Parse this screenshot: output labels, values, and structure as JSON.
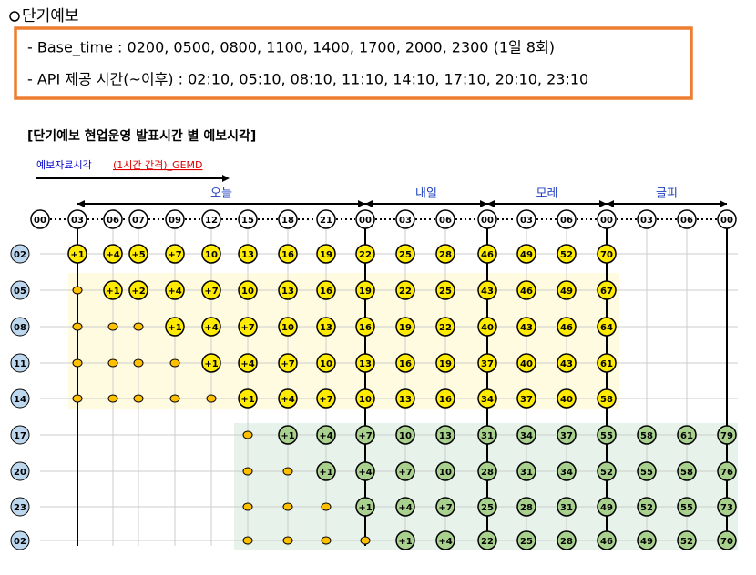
{
  "header": {
    "title": "단기예보"
  },
  "box": {
    "lines": [
      "- Base_time : 0200, 0500, 0800, 1100, 1400, 1700, 2000, 2300 (1일 8회)",
      "- API 제공 시간(~이후) : 02:10, 05:10, 08:10, 11:10, 14:10, 17:10, 20:10, 23:10"
    ]
  },
  "section": {
    "title": "[단기예보 현업운영 발표시간 별 예보시각]"
  },
  "legend": {
    "label": "예보자료시각",
    "note": "(1시간 간격)_GEMD"
  },
  "days": [
    "오늘",
    "내일",
    "모레",
    "글피"
  ],
  "columns": [
    "00",
    "03",
    "06",
    "07",
    "09",
    "12",
    "15",
    "18",
    "21",
    "00",
    "03",
    "06",
    "00",
    "03",
    "06",
    "00",
    "03",
    "06",
    "00"
  ],
  "rows": [
    {
      "label": "02",
      "cells": [
        null,
        "+1",
        "+4",
        "+5",
        "+7",
        "10",
        "13",
        "16",
        "19",
        "22",
        "25",
        "28",
        "46",
        "49",
        "52",
        "70",
        null,
        null,
        null
      ]
    },
    {
      "label": "05",
      "cells": [
        null,
        null,
        "+1",
        "+2",
        "+4",
        "+7",
        "10",
        "13",
        "16",
        "19",
        "22",
        "25",
        "43",
        "46",
        "49",
        "67",
        null,
        null,
        null
      ]
    },
    {
      "label": "08",
      "cells": [
        null,
        null,
        null,
        null,
        "+1",
        "+4",
        "+7",
        "10",
        "13",
        "16",
        "19",
        "22",
        "40",
        "43",
        "46",
        "64",
        null,
        null,
        null
      ]
    },
    {
      "label": "11",
      "cells": [
        null,
        null,
        null,
        null,
        null,
        "+1",
        "+4",
        "+7",
        "10",
        "13",
        "16",
        "19",
        "37",
        "40",
        "43",
        "61",
        null,
        null,
        null
      ]
    },
    {
      "label": "14",
      "cells": [
        null,
        null,
        null,
        null,
        null,
        null,
        "+1",
        "+4",
        "+7",
        "10",
        "13",
        "16",
        "34",
        "37",
        "40",
        "58",
        null,
        null,
        null
      ]
    },
    {
      "label": "17",
      "cells": [
        null,
        null,
        null,
        null,
        null,
        null,
        null,
        "+1",
        "+4",
        "+7",
        "10",
        "13",
        "31",
        "34",
        "37",
        "55",
        "58",
        "61",
        "79"
      ]
    },
    {
      "label": "20",
      "cells": [
        null,
        null,
        null,
        null,
        null,
        null,
        null,
        null,
        "+1",
        "+4",
        "+7",
        "10",
        "28",
        "31",
        "34",
        "52",
        "55",
        "58",
        "76"
      ]
    },
    {
      "label": "23",
      "cells": [
        null,
        null,
        null,
        null,
        null,
        null,
        null,
        null,
        null,
        "+1",
        "+4",
        "+7",
        "25",
        "28",
        "31",
        "49",
        "52",
        "55",
        "73"
      ]
    },
    {
      "label": "02",
      "cells": [
        null,
        null,
        null,
        null,
        null,
        null,
        null,
        null,
        null,
        null,
        "+1",
        "+4",
        "22",
        "25",
        "28",
        "46",
        "49",
        "52",
        "70"
      ]
    }
  ]
}
